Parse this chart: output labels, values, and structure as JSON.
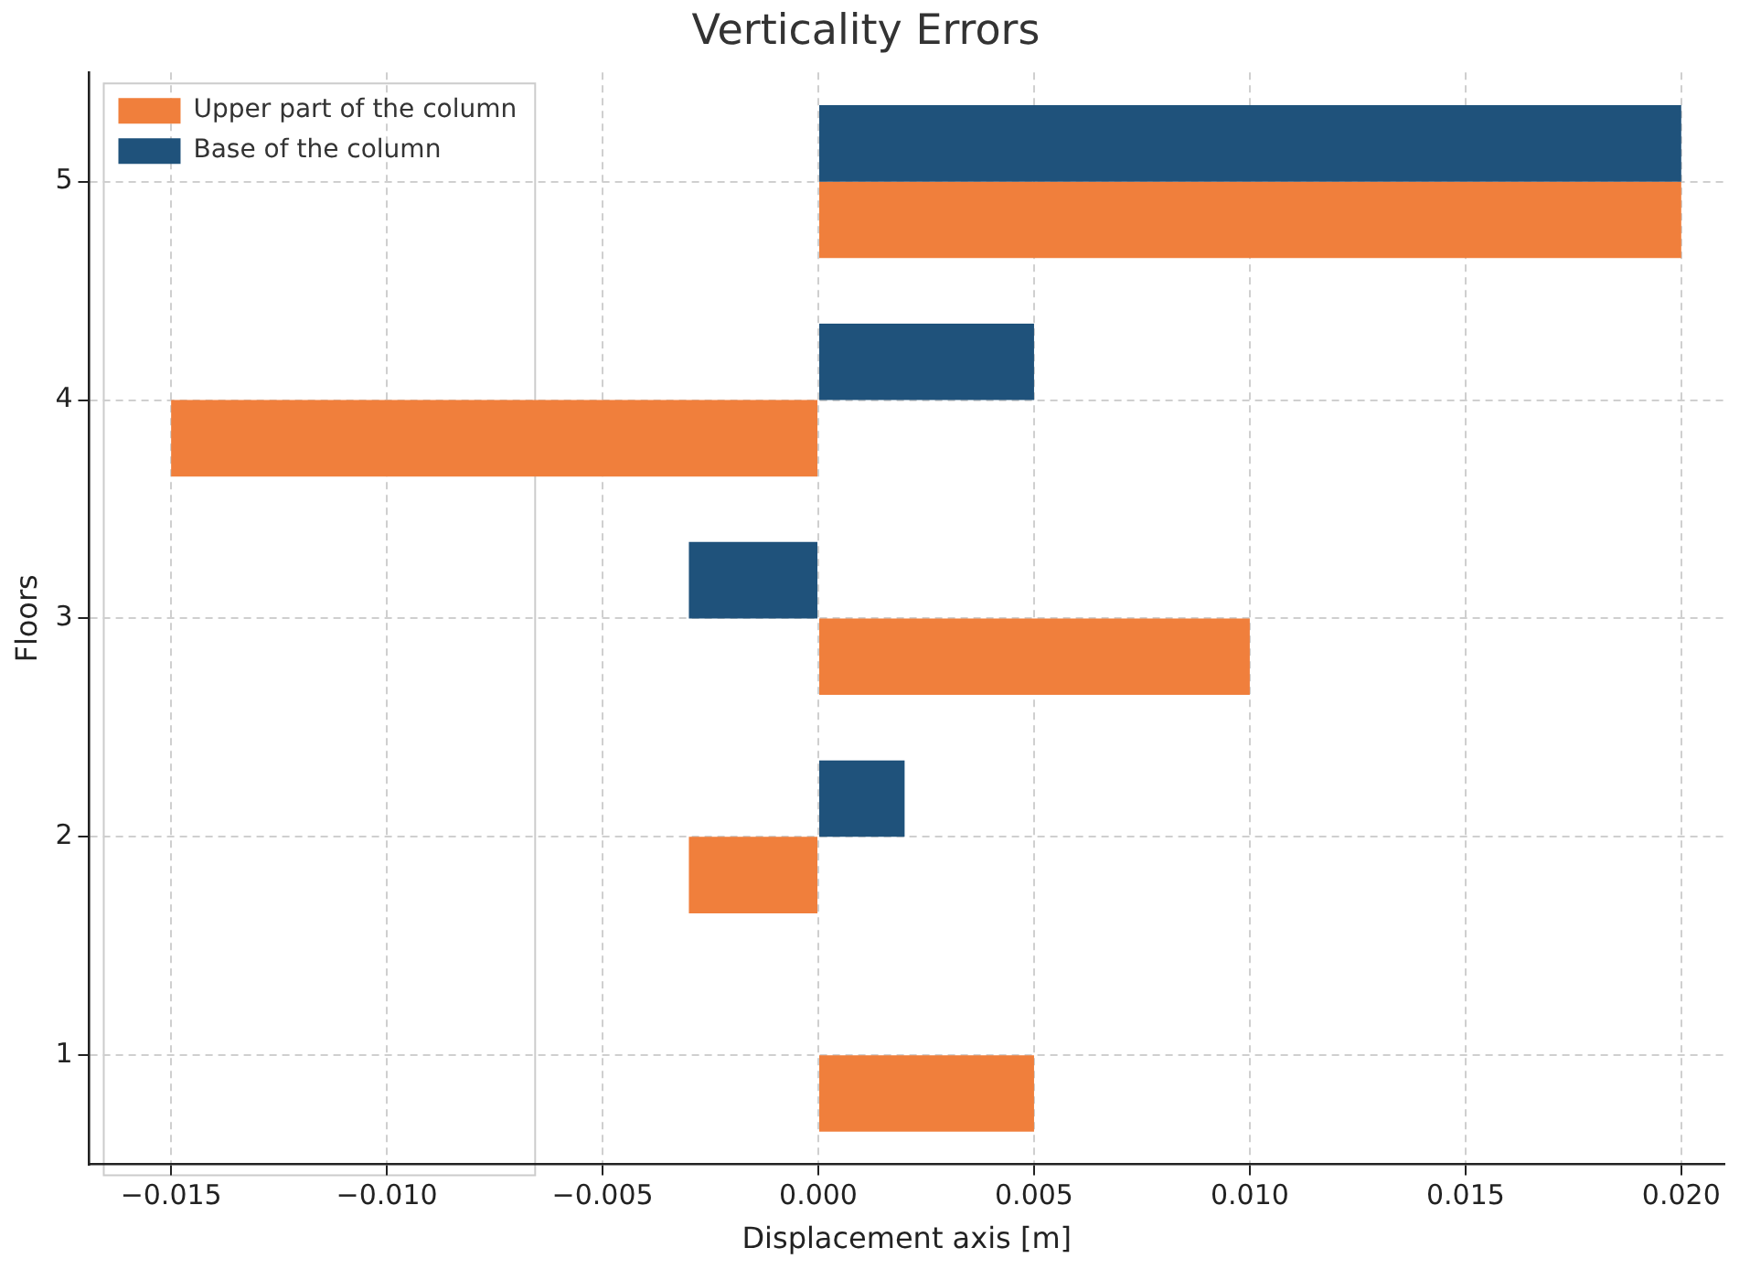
{
  "chart_data": {
    "type": "bar",
    "orientation": "horizontal",
    "title": "Verticality Errors",
    "xlabel": "Displacement axis [m]",
    "ylabel": "Floors",
    "categories": [
      "5",
      "4",
      "3",
      "2",
      "1"
    ],
    "series": [
      {
        "name": "Upper part of the column",
        "color": "#f07f3c",
        "values": [
          0.02,
          -0.015,
          0.01,
          -0.003,
          0.005
        ]
      },
      {
        "name": "Base of the column",
        "color": "#1f527b",
        "values": [
          0.02,
          0.005,
          -0.003,
          0.002,
          0
        ]
      }
    ],
    "xlim": [
      -0.0169,
      0.021
    ],
    "xticks": [
      {
        "value": -0.015,
        "label": "−0.015"
      },
      {
        "value": -0.01,
        "label": "−0.010"
      },
      {
        "value": -0.005,
        "label": "−0.005"
      },
      {
        "value": 0,
        "label": "0.000"
      },
      {
        "value": 0.005,
        "label": "0.005"
      },
      {
        "value": 0.01,
        "label": "0.010"
      },
      {
        "value": 0.015,
        "label": "0.015"
      },
      {
        "value": 0.02,
        "label": "0.020"
      }
    ],
    "grid": true,
    "legend": "top left"
  }
}
